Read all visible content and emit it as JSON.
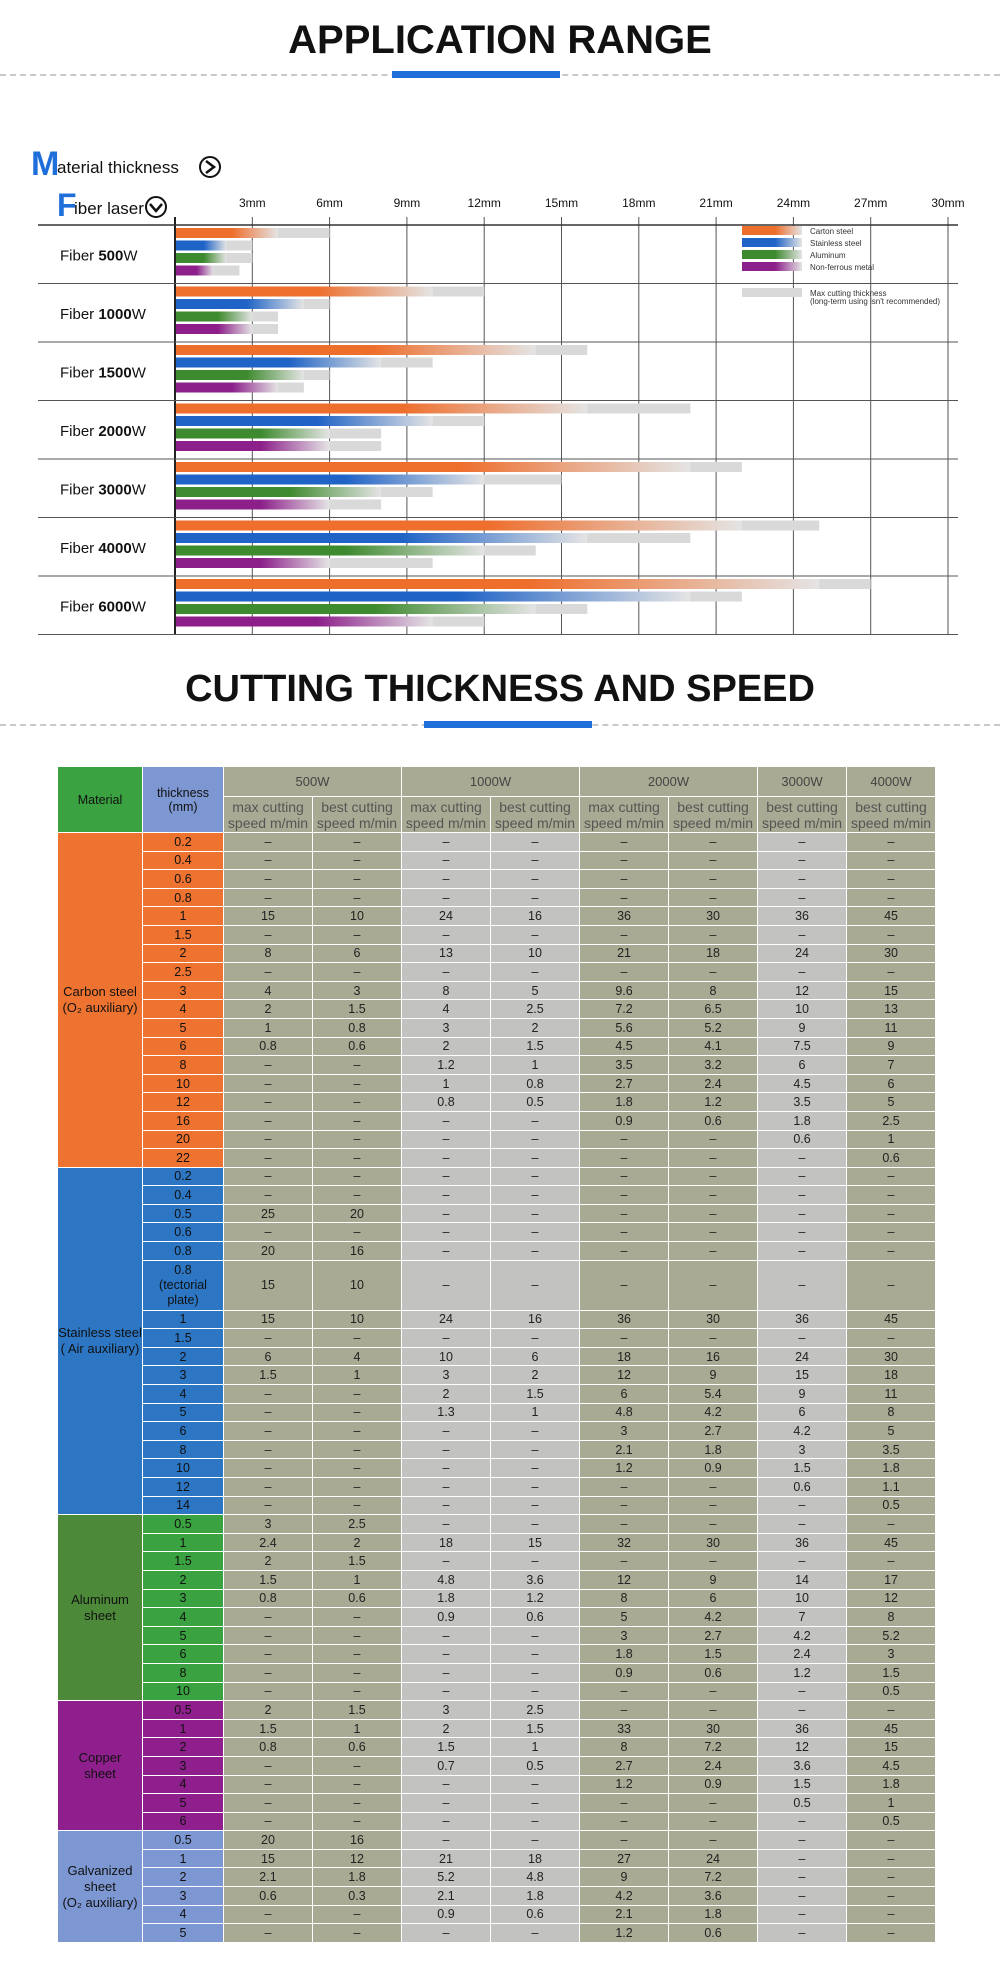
{
  "section1": {
    "title": "APPLICATION RANGE"
  },
  "section2": {
    "title": "CUTTING THICKNESS AND SPEED"
  },
  "colors": {
    "accent": "#1e6fd9",
    "carbon": "#ee6e2c",
    "stainless": "#1f63c6",
    "aluminum": "#3e8a2e",
    "nonferrous": "#8c1f8a",
    "max": "#d9d9d9"
  },
  "chart_data": {
    "type": "bar",
    "orientation": "horizontal",
    "header": {
      "material_label": "aterial thickness",
      "material_letter": "M",
      "fiber_label": "iber laser",
      "fiber_letter": "F"
    },
    "x_unit": "mm",
    "x_ticks": [
      "3mm",
      "6mm",
      "9mm",
      "12mm",
      "15mm",
      "18mm",
      "21mm",
      "24mm",
      "27mm",
      "30mm"
    ],
    "xlim": [
      0,
      30
    ],
    "legend_position": "top-right",
    "legend": [
      {
        "label": "Carton steel",
        "color": "#ee6e2c"
      },
      {
        "label": "Stainless steel",
        "color": "#1f63c6"
      },
      {
        "label": "Aluminum",
        "color": "#3e8a2e"
      },
      {
        "label": "Non-ferrous metal",
        "color": "#8c1f8a"
      },
      {
        "label": "Max cutting thickness",
        "sublabel": "(long-term using isn't recommended)",
        "color": "#d9d9d9"
      }
    ],
    "groups": [
      {
        "prefix": "Fiber ",
        "power": "500",
        "suffix": "W",
        "series": [
          {
            "name": "Carton steel",
            "best": 4,
            "max": 6
          },
          {
            "name": "Stainless steel",
            "best": 2,
            "max": 3
          },
          {
            "name": "Aluminum",
            "best": 2,
            "max": 3
          },
          {
            "name": "Non-ferrous metal",
            "best": 1.5,
            "max": 2.5
          }
        ]
      },
      {
        "prefix": "Fiber ",
        "power": "1000",
        "suffix": "W",
        "series": [
          {
            "name": "Carton steel",
            "best": 10,
            "max": 12
          },
          {
            "name": "Stainless steel",
            "best": 5,
            "max": 6
          },
          {
            "name": "Aluminum",
            "best": 3,
            "max": 4
          },
          {
            "name": "Non-ferrous metal",
            "best": 3,
            "max": 4
          }
        ]
      },
      {
        "prefix": "Fiber ",
        "power": "1500",
        "suffix": "W",
        "series": [
          {
            "name": "Carton steel",
            "best": 14,
            "max": 16
          },
          {
            "name": "Stainless steel",
            "best": 8,
            "max": 10
          },
          {
            "name": "Aluminum",
            "best": 5,
            "max": 6
          },
          {
            "name": "Non-ferrous metal",
            "best": 4,
            "max": 5
          }
        ]
      },
      {
        "prefix": "Fiber ",
        "power": "2000",
        "suffix": "W",
        "series": [
          {
            "name": "Carton steel",
            "best": 16,
            "max": 20
          },
          {
            "name": "Stainless steel",
            "best": 10,
            "max": 12
          },
          {
            "name": "Aluminum",
            "best": 6,
            "max": 8
          },
          {
            "name": "Non-ferrous metal",
            "best": 6,
            "max": 8
          }
        ]
      },
      {
        "prefix": "Fiber ",
        "power": "3000",
        "suffix": "W",
        "series": [
          {
            "name": "Carton steel",
            "best": 20,
            "max": 22
          },
          {
            "name": "Stainless steel",
            "best": 12,
            "max": 15
          },
          {
            "name": "Aluminum",
            "best": 8,
            "max": 10
          },
          {
            "name": "Non-ferrous metal",
            "best": 6,
            "max": 8
          }
        ]
      },
      {
        "prefix": "Fiber ",
        "power": "4000",
        "suffix": "W",
        "series": [
          {
            "name": "Carton steel",
            "best": 22,
            "max": 25
          },
          {
            "name": "Stainless steel",
            "best": 16,
            "max": 20
          },
          {
            "name": "Aluminum",
            "best": 12,
            "max": 14
          },
          {
            "name": "Non-ferrous metal",
            "best": 6,
            "max": 10
          }
        ]
      },
      {
        "prefix": "Fiber ",
        "power": "6000",
        "suffix": "W",
        "series": [
          {
            "name": "Carton steel",
            "best": 25,
            "max": 27
          },
          {
            "name": "Stainless steel",
            "best": 20,
            "max": 22
          },
          {
            "name": "Aluminum",
            "best": 14,
            "max": 16
          },
          {
            "name": "Non-ferrous metal",
            "best": 10,
            "max": 12
          }
        ]
      }
    ]
  },
  "table": {
    "header": {
      "material": "Material",
      "thickness": "thickness\n(mm)",
      "powers": [
        "500W",
        "1000W",
        "2000W",
        "3000W",
        "4000W"
      ],
      "max_label": "max cutting\nspeed m/min",
      "best_label": "best cutting\nspeed m/min"
    },
    "groups": [
      {
        "material": "Carbon steel\n(O₂ auxiliary)",
        "color": "#ee7330",
        "thk_color": "#ee7330",
        "rows": [
          [
            "0.2",
            "–",
            "–",
            "–",
            "–",
            "–",
            "–",
            "–",
            "–"
          ],
          [
            "0.4",
            "–",
            "–",
            "–",
            "–",
            "–",
            "–",
            "–",
            "–"
          ],
          [
            "0.6",
            "–",
            "–",
            "–",
            "–",
            "–",
            "–",
            "–",
            "–"
          ],
          [
            "0.8",
            "–",
            "–",
            "–",
            "–",
            "–",
            "–",
            "–",
            "–"
          ],
          [
            "1",
            "15",
            "10",
            "24",
            "16",
            "36",
            "30",
            "36",
            "45"
          ],
          [
            "1.5",
            "–",
            "–",
            "–",
            "–",
            "–",
            "–",
            "–",
            "–"
          ],
          [
            "2",
            "8",
            "6",
            "13",
            "10",
            "21",
            "18",
            "24",
            "30"
          ],
          [
            "2.5",
            "–",
            "–",
            "–",
            "–",
            "–",
            "–",
            "–",
            "–"
          ],
          [
            "3",
            "4",
            "3",
            "8",
            "5",
            "9.6",
            "8",
            "12",
            "15"
          ],
          [
            "4",
            "2",
            "1.5",
            "4",
            "2.5",
            "7.2",
            "6.5",
            "10",
            "13"
          ],
          [
            "5",
            "1",
            "0.8",
            "3",
            "2",
            "5.6",
            "5.2",
            "9",
            "11"
          ],
          [
            "6",
            "0.8",
            "0.6",
            "2",
            "1.5",
            "4.5",
            "4.1",
            "7.5",
            "9"
          ],
          [
            "8",
            "–",
            "–",
            "1.2",
            "1",
            "3.5",
            "3.2",
            "6",
            "7"
          ],
          [
            "10",
            "–",
            "–",
            "1",
            "0.8",
            "2.7",
            "2.4",
            "4.5",
            "6"
          ],
          [
            "12",
            "–",
            "–",
            "0.8",
            "0.5",
            "1.8",
            "1.2",
            "3.5",
            "5"
          ],
          [
            "16",
            "–",
            "–",
            "–",
            "–",
            "0.9",
            "0.6",
            "1.8",
            "2.5"
          ],
          [
            "20",
            "–",
            "–",
            "–",
            "–",
            "–",
            "–",
            "0.6",
            "1"
          ],
          [
            "22",
            "–",
            "–",
            "–",
            "–",
            "–",
            "–",
            "–",
            "0.6"
          ]
        ]
      },
      {
        "material": "Stainless steel\n( Air auxiliary)",
        "color": "#2c76c4",
        "thk_color": "#2c76c4",
        "rows": [
          [
            "0.2",
            "–",
            "–",
            "–",
            "–",
            "–",
            "–",
            "–",
            "–"
          ],
          [
            "0.4",
            "–",
            "–",
            "–",
            "–",
            "–",
            "–",
            "–",
            "–"
          ],
          [
            "0.5",
            "25",
            "20",
            "–",
            "–",
            "–",
            "–",
            "–",
            "–"
          ],
          [
            "0.6",
            "–",
            "–",
            "–",
            "–",
            "–",
            "–",
            "–",
            "–"
          ],
          [
            "0.8",
            "20",
            "16",
            "–",
            "–",
            "–",
            "–",
            "–",
            "–"
          ],
          [
            "0.8\n(tectorial\nplate)",
            "15",
            "10",
            "–",
            "–",
            "–",
            "–",
            "–",
            "–"
          ],
          [
            "1",
            "15",
            "10",
            "24",
            "16",
            "36",
            "30",
            "36",
            "45"
          ],
          [
            "1.5",
            "–",
            "–",
            "–",
            "–",
            "–",
            "–",
            "–",
            "–"
          ],
          [
            "2",
            "6",
            "4",
            "10",
            "6",
            "18",
            "16",
            "24",
            "30"
          ],
          [
            "3",
            "1.5",
            "1",
            "3",
            "2",
            "12",
            "9",
            "15",
            "18"
          ],
          [
            "4",
            "–",
            "–",
            "2",
            "1.5",
            "6",
            "5.4",
            "9",
            "11"
          ],
          [
            "5",
            "–",
            "–",
            "1.3",
            "1",
            "4.8",
            "4.2",
            "6",
            "8"
          ],
          [
            "6",
            "–",
            "–",
            "–",
            "–",
            "3",
            "2.7",
            "4.2",
            "5"
          ],
          [
            "8",
            "–",
            "–",
            "–",
            "–",
            "2.1",
            "1.8",
            "3",
            "3.5"
          ],
          [
            "10",
            "–",
            "–",
            "–",
            "–",
            "1.2",
            "0.9",
            "1.5",
            "1.8"
          ],
          [
            "12",
            "–",
            "–",
            "–",
            "–",
            "–",
            "–",
            "0.6",
            "1.1"
          ],
          [
            "14",
            "–",
            "–",
            "–",
            "–",
            "–",
            "–",
            "–",
            "0.5"
          ]
        ]
      },
      {
        "material": "Aluminum\nsheet",
        "color": "#4c8a3a",
        "thk_color": "#3aa240",
        "rows": [
          [
            "0.5",
            "3",
            "2.5",
            "–",
            "–",
            "–",
            "–",
            "–",
            "–"
          ],
          [
            "1",
            "2.4",
            "2",
            "18",
            "15",
            "32",
            "30",
            "36",
            "45"
          ],
          [
            "1.5",
            "2",
            "1.5",
            "–",
            "–",
            "–",
            "–",
            "–",
            "–"
          ],
          [
            "2",
            "1.5",
            "1",
            "4.8",
            "3.6",
            "12",
            "9",
            "14",
            "17"
          ],
          [
            "3",
            "0.8",
            "0.6",
            "1.8",
            "1.2",
            "8",
            "6",
            "10",
            "12"
          ],
          [
            "4",
            "–",
            "–",
            "0.9",
            "0.6",
            "5",
            "4.2",
            "7",
            "8"
          ],
          [
            "5",
            "–",
            "–",
            "–",
            "–",
            "3",
            "2.7",
            "4.2",
            "5.2"
          ],
          [
            "6",
            "–",
            "–",
            "–",
            "–",
            "1.8",
            "1.5",
            "2.4",
            "3"
          ],
          [
            "8",
            "–",
            "–",
            "–",
            "–",
            "0.9",
            "0.6",
            "1.2",
            "1.5"
          ],
          [
            "10",
            "–",
            "–",
            "–",
            "–",
            "–",
            "–",
            "–",
            "0.5"
          ]
        ]
      },
      {
        "material": "Copper\nsheet",
        "color": "#8e1f8c",
        "thk_color": "#8e1f8c",
        "rows": [
          [
            "0.5",
            "2",
            "1.5",
            "3",
            "2.5",
            "–",
            "–",
            "–",
            "–"
          ],
          [
            "1",
            "1.5",
            "1",
            "2",
            "1.5",
            "33",
            "30",
            "36",
            "45"
          ],
          [
            "2",
            "0.8",
            "0.6",
            "1.5",
            "1",
            "8",
            "7.2",
            "12",
            "15"
          ],
          [
            "3",
            "–",
            "–",
            "0.7",
            "0.5",
            "2.7",
            "2.4",
            "3.6",
            "4.5"
          ],
          [
            "4",
            "–",
            "–",
            "–",
            "–",
            "1.2",
            "0.9",
            "1.5",
            "1.8"
          ],
          [
            "5",
            "–",
            "–",
            "–",
            "–",
            "–",
            "–",
            "0.5",
            "1"
          ],
          [
            "6",
            "–",
            "–",
            "–",
            "–",
            "–",
            "–",
            "–",
            "0.5"
          ]
        ]
      },
      {
        "material": "Galvanized\nsheet\n(O₂ auxiliary)",
        "color": "#7d97d2",
        "thk_color": "#7d97d2",
        "rows": [
          [
            "0.5",
            "20",
            "16",
            "–",
            "–",
            "–",
            "–",
            "–",
            "–"
          ],
          [
            "1",
            "15",
            "12",
            "21",
            "18",
            "27",
            "24",
            "–",
            "–"
          ],
          [
            "2",
            "2.1",
            "1.8",
            "5.2",
            "4.8",
            "9",
            "7.2",
            "–",
            "–"
          ],
          [
            "3",
            "0.6",
            "0.3",
            "2.1",
            "1.8",
            "4.2",
            "3.6",
            "–",
            "–"
          ],
          [
            "4",
            "–",
            "–",
            "0.9",
            "0.6",
            "2.1",
            "1.8",
            "–",
            "–"
          ],
          [
            "5",
            "–",
            "–",
            "–",
            "–",
            "1.2",
            "0.6",
            "–",
            "–"
          ]
        ]
      }
    ]
  }
}
